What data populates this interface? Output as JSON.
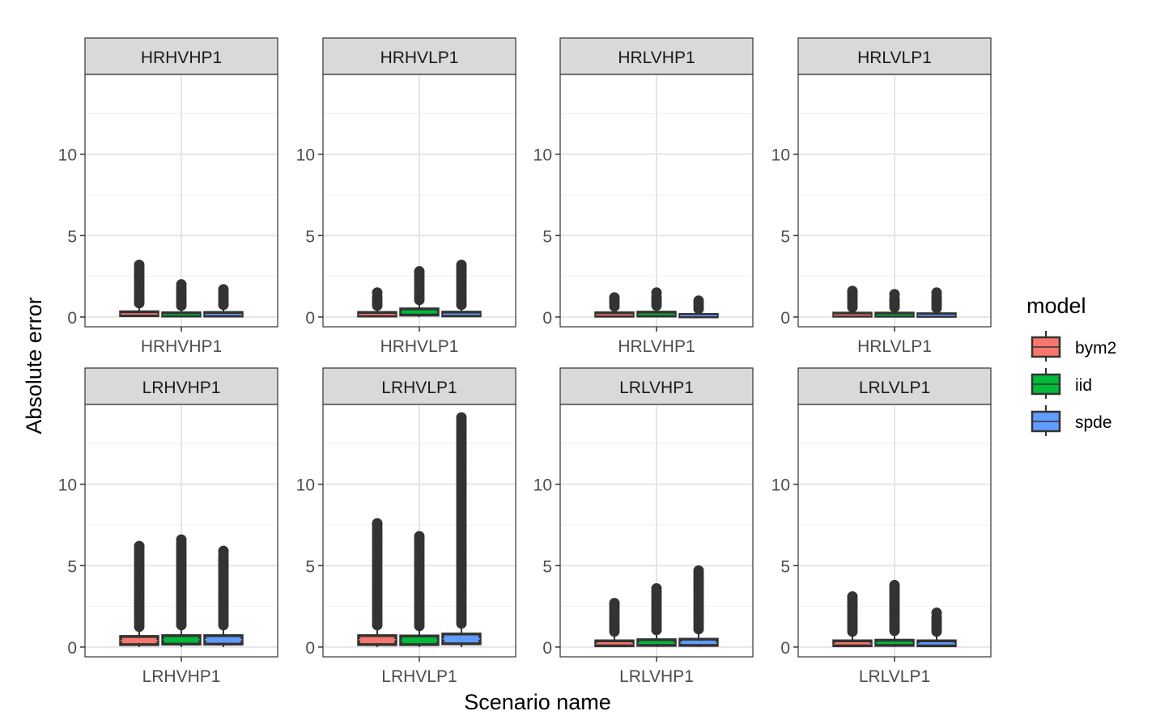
{
  "chart_data": {
    "type": "boxplot",
    "title": "",
    "xlabel": "Scenario name",
    "ylabel": "Absolute error",
    "ylim": [
      -0.6,
      14.9
    ],
    "yticks": [
      0,
      5,
      10
    ],
    "grid": true,
    "facet_layout": "2 rows x 4 columns",
    "legend": {
      "title": "model",
      "position": "right",
      "entries": [
        {
          "label": "bym2",
          "color": "#F8766D"
        },
        {
          "label": "iid",
          "color": "#00BA38"
        },
        {
          "label": "spde",
          "color": "#619CFF"
        }
      ]
    },
    "models": [
      "bym2",
      "iid",
      "spde"
    ],
    "colors": {
      "bym2": "#F8766D",
      "iid": "#00BA38",
      "spde": "#619CFF"
    },
    "panels": [
      {
        "strip": "HRHVHP1",
        "x_tick": "HRHVHP1",
        "boxes": [
          {
            "model": "bym2",
            "q1": 0.08,
            "median": 0.18,
            "q3": 0.32,
            "whisker_high": 0.7,
            "outlier_max": 3.2
          },
          {
            "model": "iid",
            "q1": 0.06,
            "median": 0.14,
            "q3": 0.26,
            "whisker_high": 0.55,
            "outlier_max": 2.0
          },
          {
            "model": "spde",
            "q1": 0.06,
            "median": 0.15,
            "q3": 0.28,
            "whisker_high": 0.6,
            "outlier_max": 1.7
          }
        ]
      },
      {
        "strip": "HRHVLP1",
        "x_tick": "HRHVLP1",
        "boxes": [
          {
            "model": "bym2",
            "q1": 0.06,
            "median": 0.15,
            "q3": 0.28,
            "whisker_high": 0.55,
            "outlier_max": 1.5
          },
          {
            "model": "iid",
            "q1": 0.12,
            "median": 0.3,
            "q3": 0.5,
            "whisker_high": 0.9,
            "outlier_max": 2.8
          },
          {
            "model": "spde",
            "q1": 0.07,
            "median": 0.17,
            "q3": 0.3,
            "whisker_high": 0.6,
            "outlier_max": 3.2
          }
        ]
      },
      {
        "strip": "HRLVHP1",
        "x_tick": "HRLVHP1",
        "boxes": [
          {
            "model": "bym2",
            "q1": 0.05,
            "median": 0.13,
            "q3": 0.26,
            "whisker_high": 0.5,
            "outlier_max": 1.2
          },
          {
            "model": "iid",
            "q1": 0.06,
            "median": 0.16,
            "q3": 0.3,
            "whisker_high": 0.55,
            "outlier_max": 1.5
          },
          {
            "model": "spde",
            "q1": 0.03,
            "median": 0.08,
            "q3": 0.16,
            "whisker_high": 0.35,
            "outlier_max": 1.0
          }
        ]
      },
      {
        "strip": "HRLVLP1",
        "x_tick": "HRLVLP1",
        "boxes": [
          {
            "model": "bym2",
            "q1": 0.05,
            "median": 0.12,
            "q3": 0.24,
            "whisker_high": 0.45,
            "outlier_max": 1.6
          },
          {
            "model": "iid",
            "q1": 0.05,
            "median": 0.12,
            "q3": 0.24,
            "whisker_high": 0.45,
            "outlier_max": 1.4
          },
          {
            "model": "spde",
            "q1": 0.04,
            "median": 0.1,
            "q3": 0.2,
            "whisker_high": 0.4,
            "outlier_max": 1.5
          }
        ]
      },
      {
        "strip": "LRHVHP1",
        "x_tick": "LRHVHP1",
        "boxes": [
          {
            "model": "bym2",
            "q1": 0.15,
            "median": 0.4,
            "q3": 0.65,
            "whisker_high": 1.1,
            "outlier_max": 6.2
          },
          {
            "model": "iid",
            "q1": 0.18,
            "median": 0.45,
            "q3": 0.7,
            "whisker_high": 1.2,
            "outlier_max": 6.6
          },
          {
            "model": "spde",
            "q1": 0.18,
            "median": 0.45,
            "q3": 0.7,
            "whisker_high": 1.2,
            "outlier_max": 5.9
          }
        ]
      },
      {
        "strip": "LRHVLP1",
        "x_tick": "LRHVLP1",
        "boxes": [
          {
            "model": "bym2",
            "q1": 0.15,
            "median": 0.45,
            "q3": 0.7,
            "whisker_high": 1.2,
            "outlier_max": 7.6
          },
          {
            "model": "iid",
            "q1": 0.15,
            "median": 0.42,
            "q3": 0.68,
            "whisker_high": 1.15,
            "outlier_max": 6.8
          },
          {
            "model": "spde",
            "q1": 0.2,
            "median": 0.5,
            "q3": 0.8,
            "whisker_high": 1.3,
            "outlier_max": 14.1
          }
        ]
      },
      {
        "strip": "LRLVHP1",
        "x_tick": "LRLVHP1",
        "boxes": [
          {
            "model": "bym2",
            "q1": 0.08,
            "median": 0.2,
            "q3": 0.38,
            "whisker_high": 0.8,
            "outlier_max": 2.7
          },
          {
            "model": "iid",
            "q1": 0.1,
            "median": 0.24,
            "q3": 0.45,
            "whisker_high": 0.9,
            "outlier_max": 3.6
          },
          {
            "model": "spde",
            "q1": 0.1,
            "median": 0.25,
            "q3": 0.48,
            "whisker_high": 0.95,
            "outlier_max": 4.7
          }
        ]
      },
      {
        "strip": "LRLVLP1",
        "x_tick": "LRLVLP1",
        "boxes": [
          {
            "model": "bym2",
            "q1": 0.08,
            "median": 0.2,
            "q3": 0.38,
            "whisker_high": 0.8,
            "outlier_max": 3.1
          },
          {
            "model": "iid",
            "q1": 0.1,
            "median": 0.24,
            "q3": 0.42,
            "whisker_high": 0.85,
            "outlier_max": 3.8
          },
          {
            "model": "spde",
            "q1": 0.08,
            "median": 0.2,
            "q3": 0.38,
            "whisker_high": 0.8,
            "outlier_max": 2.1
          }
        ]
      }
    ]
  }
}
